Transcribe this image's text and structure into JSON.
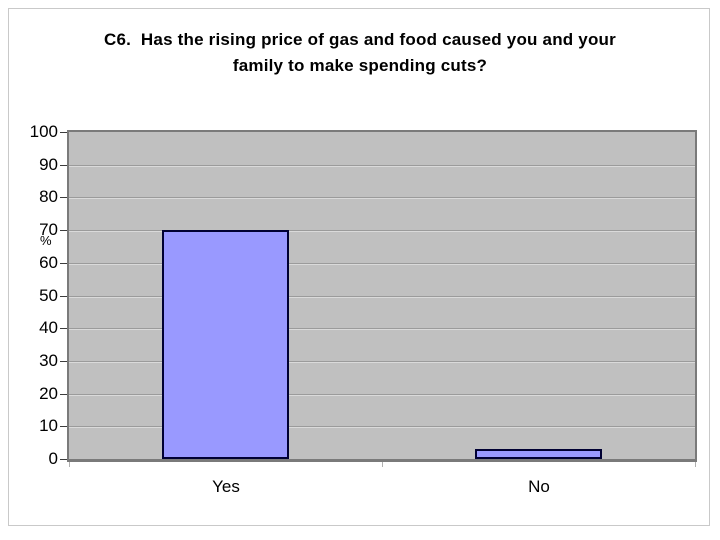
{
  "title": {
    "line1": "C6.  Has the rising price of gas and food caused you and your",
    "line2": "family to make spending cuts?"
  },
  "chart_data": {
    "type": "bar",
    "title": "C6.  Has the rising price of gas and food caused you and your family to make spending cuts?",
    "categories": [
      "Yes",
      "No"
    ],
    "values": [
      70,
      3
    ],
    "xlabel": "",
    "ylabel": "%",
    "ylim": [
      0,
      100
    ],
    "ytick_step": 10,
    "yticks": [
      0,
      10,
      20,
      30,
      40,
      50,
      60,
      70,
      80,
      90,
      100
    ],
    "grid": true,
    "legend": false,
    "colors": {
      "bar_fill": "#9999ff",
      "bar_border": "#000033",
      "plot_bg": "#c0c0c0",
      "plot_border": "#7a7a7a",
      "gridline_dark": "#9b9b9b",
      "gridline_light": "#dadada",
      "text": "#000000",
      "page_bg": "#ffffff",
      "outer_border": "#c9c9c9"
    }
  }
}
